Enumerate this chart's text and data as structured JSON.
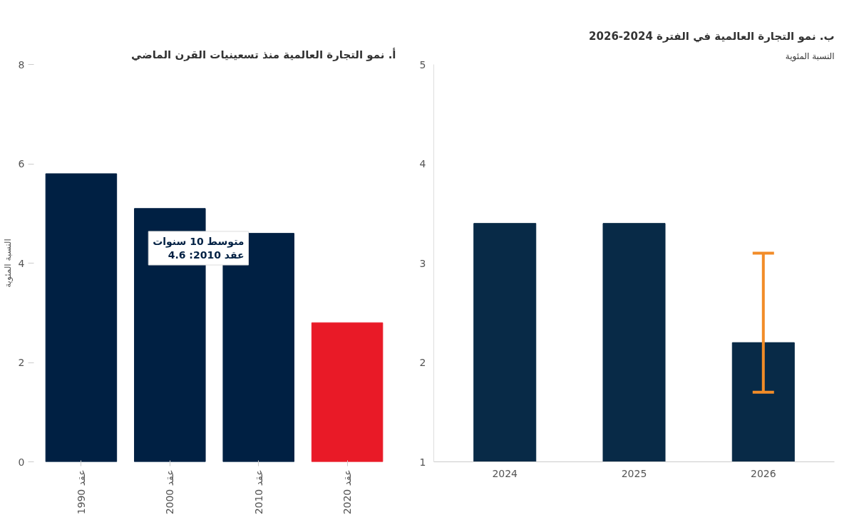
{
  "chart_data": [
    {
      "type": "bar",
      "title": "أ. نمو التجارة العالمية منذ تسعينيات القرن الماضي",
      "ylabel": "النسبة المئوية",
      "categories": [
        "عقد 1990",
        "عقد 2000",
        "عقد 2010",
        "عقد 2020"
      ],
      "values": [
        5.8,
        5.1,
        4.6,
        2.8
      ],
      "colors": [
        "#002043",
        "#002043",
        "#002043",
        "#e91a27"
      ],
      "ylim": [
        0,
        8
      ],
      "yticks": [
        0,
        2,
        4,
        6,
        8
      ],
      "grid": false,
      "annotations": [
        "متوسط 10 سنوات\nعقد 2010: 4.6"
      ]
    },
    {
      "type": "bar",
      "title": "ب. نمو التجارة العالمية في الفترة 2024-2026",
      "ylabel": "النسبة المئوية",
      "categories": [
        "2024",
        "2025",
        "2026"
      ],
      "values": [
        3.4,
        3.4,
        2.2
      ],
      "color": "#082a47",
      "errors": [
        null,
        null,
        [
          1.7,
          3.1
        ]
      ],
      "ylim": [
        1,
        5
      ],
      "yticks": [
        1,
        2,
        3,
        4,
        5
      ],
      "grid": false
    }
  ]
}
